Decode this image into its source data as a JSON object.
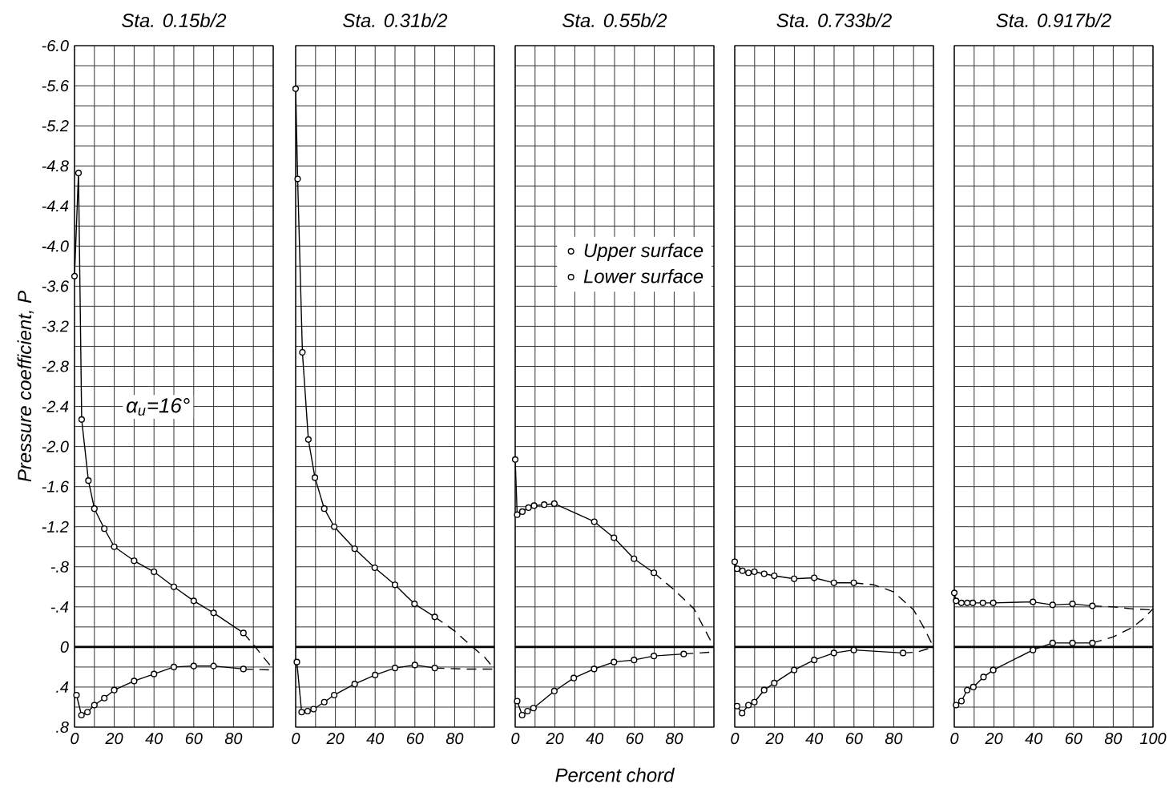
{
  "chart_data": [
    {
      "type": "line",
      "title": "Sta. 0.15b/2",
      "ylabel": "Pressure coefficient, P",
      "annotations": [
        "α$_{u}$=16°"
      ],
      "xlim": [
        0,
        100
      ],
      "ylim": [
        0.8,
        -6.0
      ],
      "grid": true,
      "marker": "circle",
      "xticks": [
        0,
        {
          "value": 10,
          "label": null
        },
        20,
        {
          "value": 30,
          "label": null
        },
        40,
        {
          "value": 50,
          "label": null
        },
        60,
        {
          "value": 70,
          "label": null
        },
        80,
        {
          "value": 90,
          "label": null
        },
        {
          "value": 100,
          "label": null
        }
      ],
      "yticks": [
        {
          "value": -6.0,
          "label": "-6.0"
        },
        {
          "value": -5.8,
          "label": null
        },
        -5.6,
        {
          "value": -5.4,
          "label": null
        },
        -5.2,
        {
          "value": -5.0,
          "label": null
        },
        -4.8,
        {
          "value": -4.6,
          "label": null
        },
        -4.4,
        {
          "value": -4.2,
          "label": null
        },
        {
          "value": -4.0,
          "label": "-4.0"
        },
        {
          "value": -3.8,
          "label": null
        },
        -3.6,
        {
          "value": -3.4,
          "label": null
        },
        -3.2,
        {
          "value": -3.0,
          "label": null
        },
        -2.8,
        {
          "value": -2.6,
          "label": null
        },
        -2.4,
        {
          "value": -2.2,
          "label": null
        },
        {
          "value": -2.0,
          "label": "-2.0"
        },
        {
          "value": -1.8,
          "label": null
        },
        -1.6,
        {
          "value": -1.4,
          "label": null
        },
        -1.2,
        {
          "value": -1.0,
          "label": null
        },
        {
          "value": -0.8,
          "label": "-.8"
        },
        {
          "value": -0.6,
          "label": null
        },
        {
          "value": -0.4,
          "label": "-.4"
        },
        {
          "value": -0.2,
          "label": null
        },
        0,
        {
          "value": 0.2,
          "label": null
        },
        {
          "value": 0.4,
          "label": ".4"
        },
        {
          "value": 0.6,
          "label": null
        },
        {
          "value": 0.8,
          "label": ".8"
        }
      ],
      "ref_lines": [
        {
          "axis": "y",
          "value": 0
        }
      ],
      "series": [
        {
          "color": "#000000",
          "x": [
            0,
            2,
            3.6,
            7,
            10,
            15,
            20,
            30,
            40,
            50,
            60,
            70,
            85
          ],
          "values": [
            -3.7,
            -4.73,
            -2.27,
            -1.66,
            -1.38,
            -1.18,
            -1.0,
            -0.86,
            -0.75,
            -0.6,
            -0.46,
            -0.34,
            -0.14
          ]
        },
        {
          "color": "#000000",
          "marker": "none",
          "line_style": "dashed",
          "x": [
            85,
            91,
            95,
            100
          ],
          "values": [
            -0.14,
            0,
            0.1,
            0.22
          ]
        },
        {
          "color": "#000000",
          "x": [
            1,
            3.5,
            6.5,
            10,
            15,
            20,
            30,
            40,
            50,
            60,
            70,
            85
          ],
          "values": [
            0.48,
            0.68,
            0.65,
            0.58,
            0.51,
            0.43,
            0.34,
            0.27,
            0.2,
            0.19,
            0.19,
            0.22
          ]
        },
        {
          "color": "#000000",
          "marker": "none",
          "line_style": "dashed",
          "x": [
            85,
            100
          ],
          "values": [
            0.22,
            0.23
          ]
        }
      ]
    },
    {
      "type": "line",
      "title": "Sta. 0.31b/2",
      "xlim": [
        0,
        100
      ],
      "ylim": [
        0.8,
        -6.0
      ],
      "grid": true,
      "marker": "circle",
      "tick_labels": "x",
      "xticks": [
        0,
        {
          "value": 10,
          "label": null
        },
        20,
        {
          "value": 30,
          "label": null
        },
        40,
        {
          "value": 50,
          "label": null
        },
        60,
        {
          "value": 70,
          "label": null
        },
        80,
        {
          "value": 90,
          "label": null
        },
        {
          "value": 100,
          "label": null
        }
      ],
      "yticks": [
        {
          "value": -6.0,
          "label": null
        },
        {
          "value": -5.8,
          "label": null
        },
        {
          "value": -5.6,
          "label": null
        },
        {
          "value": -5.4,
          "label": null
        },
        {
          "value": -5.2,
          "label": null
        },
        {
          "value": -5.0,
          "label": null
        },
        {
          "value": -4.8,
          "label": null
        },
        {
          "value": -4.6,
          "label": null
        },
        {
          "value": -4.4,
          "label": null
        },
        {
          "value": -4.2,
          "label": null
        },
        {
          "value": -4.0,
          "label": null
        },
        {
          "value": -3.8,
          "label": null
        },
        {
          "value": -3.6,
          "label": null
        },
        {
          "value": -3.4,
          "label": null
        },
        {
          "value": -3.2,
          "label": null
        },
        {
          "value": -3.0,
          "label": null
        },
        {
          "value": -2.8,
          "label": null
        },
        {
          "value": -2.6,
          "label": null
        },
        {
          "value": -2.4,
          "label": null
        },
        {
          "value": -2.2,
          "label": null
        },
        {
          "value": -2.0,
          "label": null
        },
        {
          "value": -1.8,
          "label": null
        },
        {
          "value": -1.6,
          "label": null
        },
        {
          "value": -1.4,
          "label": null
        },
        {
          "value": -1.2,
          "label": null
        },
        {
          "value": -1.0,
          "label": null
        },
        {
          "value": -0.8,
          "label": null
        },
        {
          "value": -0.6,
          "label": null
        },
        {
          "value": -0.4,
          "label": null
        },
        {
          "value": -0.2,
          "label": null
        },
        {
          "value": 0,
          "label": null
        },
        {
          "value": 0.2,
          "label": null
        },
        {
          "value": 0.4,
          "label": null
        },
        {
          "value": 0.6,
          "label": null
        },
        {
          "value": 0.8,
          "label": null
        }
      ],
      "ref_lines": [
        {
          "axis": "y",
          "value": 0
        }
      ],
      "series": [
        {
          "color": "#000000",
          "x": [
            0,
            1,
            3.4,
            6.4,
            9.7,
            14.4,
            19.4,
            29.7,
            39.8,
            50,
            59.8,
            70
          ],
          "values": [
            -5.57,
            -4.67,
            -2.94,
            -2.07,
            -1.69,
            -1.38,
            -1.2,
            -0.98,
            -0.79,
            -0.62,
            -0.43,
            -0.3
          ]
        },
        {
          "color": "#000000",
          "marker": "none",
          "line_style": "dashed",
          "x": [
            70,
            80,
            89,
            95,
            100
          ],
          "values": [
            -0.3,
            -0.16,
            0,
            0.1,
            0.22
          ]
        },
        {
          "color": "#000000",
          "x": [
            0.6,
            3,
            6,
            9,
            14.4,
            19.4,
            29.7,
            40,
            50,
            60,
            70
          ],
          "values": [
            0.15,
            0.65,
            0.64,
            0.62,
            0.55,
            0.48,
            0.37,
            0.28,
            0.21,
            0.18,
            0.21
          ]
        },
        {
          "color": "#000000",
          "marker": "none",
          "line_style": "dashed",
          "x": [
            70,
            85,
            100
          ],
          "values": [
            0.21,
            0.22,
            0.22
          ]
        }
      ]
    },
    {
      "type": "line",
      "title": "Sta. 0.55b/2",
      "xlabel": "Percent chord",
      "xlim": [
        0,
        100
      ],
      "ylim": [
        0.8,
        -6.0
      ],
      "grid": true,
      "marker": "circle",
      "tick_labels": "x",
      "legend": "top right",
      "xticks": [
        0,
        {
          "value": 10,
          "label": null
        },
        20,
        {
          "value": 30,
          "label": null
        },
        40,
        {
          "value": 50,
          "label": null
        },
        60,
        {
          "value": 70,
          "label": null
        },
        80,
        {
          "value": 90,
          "label": null
        },
        {
          "value": 100,
          "label": null
        }
      ],
      "yticks": [
        {
          "value": -6.0,
          "label": null
        },
        {
          "value": -5.8,
          "label": null
        },
        {
          "value": -5.6,
          "label": null
        },
        {
          "value": -5.4,
          "label": null
        },
        {
          "value": -5.2,
          "label": null
        },
        {
          "value": -5.0,
          "label": null
        },
        {
          "value": -4.8,
          "label": null
        },
        {
          "value": -4.6,
          "label": null
        },
        {
          "value": -4.4,
          "label": null
        },
        {
          "value": -4.2,
          "label": null
        },
        {
          "value": -4.0,
          "label": null
        },
        {
          "value": -3.8,
          "label": null
        },
        {
          "value": -3.6,
          "label": null
        },
        {
          "value": -3.4,
          "label": null
        },
        {
          "value": -3.2,
          "label": null
        },
        {
          "value": -3.0,
          "label": null
        },
        {
          "value": -2.8,
          "label": null
        },
        {
          "value": -2.6,
          "label": null
        },
        {
          "value": -2.4,
          "label": null
        },
        {
          "value": -2.2,
          "label": null
        },
        {
          "value": -2.0,
          "label": null
        },
        {
          "value": -1.8,
          "label": null
        },
        {
          "value": -1.6,
          "label": null
        },
        {
          "value": -1.4,
          "label": null
        },
        {
          "value": -1.2,
          "label": null
        },
        {
          "value": -1.0,
          "label": null
        },
        {
          "value": -0.8,
          "label": null
        },
        {
          "value": -0.6,
          "label": null
        },
        {
          "value": -0.4,
          "label": null
        },
        {
          "value": -0.2,
          "label": null
        },
        {
          "value": 0,
          "label": null
        },
        {
          "value": 0.2,
          "label": null
        },
        {
          "value": 0.4,
          "label": null
        },
        {
          "value": 0.6,
          "label": null
        },
        {
          "value": 0.8,
          "label": null
        }
      ],
      "ref_lines": [
        {
          "axis": "y",
          "value": 0
        }
      ],
      "series": [
        {
          "name": "Upper surface",
          "color": "#000000",
          "x": [
            0,
            1,
            3.6,
            6.7,
            9.5,
            14.6,
            19.7,
            39.8,
            49.7,
            59.8,
            69.8
          ],
          "values": [
            -1.87,
            -1.32,
            -1.35,
            -1.39,
            -1.41,
            -1.42,
            -1.43,
            -1.25,
            -1.09,
            -0.88,
            -0.74
          ]
        },
        {
          "color": "#000000",
          "marker": "none",
          "line_style": "dashed",
          "x": [
            69.8,
            80,
            90,
            95,
            100
          ],
          "values": [
            -0.74,
            -0.57,
            -0.38,
            -0.19,
            0
          ]
        },
        {
          "name": "Lower surface",
          "color": "#000000",
          "x": [
            1,
            3.5,
            6.2,
            9.2,
            19.7,
            29.5,
            39.7,
            49.7,
            59.8,
            69.8,
            84.8
          ],
          "values": [
            0.54,
            0.68,
            0.64,
            0.61,
            0.44,
            0.31,
            0.22,
            0.15,
            0.13,
            0.09,
            0.07
          ]
        },
        {
          "color": "#000000",
          "marker": "none",
          "line_style": "dashed",
          "x": [
            84.8,
            100
          ],
          "values": [
            0.07,
            0.05
          ]
        }
      ]
    },
    {
      "type": "line",
      "title": "Sta. 0.733b/2",
      "xlim": [
        0,
        100
      ],
      "ylim": [
        0.8,
        -6.0
      ],
      "grid": true,
      "marker": "circle",
      "tick_labels": "x",
      "xticks": [
        0,
        {
          "value": 10,
          "label": null
        },
        20,
        {
          "value": 30,
          "label": null
        },
        40,
        {
          "value": 50,
          "label": null
        },
        60,
        {
          "value": 70,
          "label": null
        },
        80,
        {
          "value": 90,
          "label": null
        },
        {
          "value": 100,
          "label": null
        }
      ],
      "yticks": [
        {
          "value": -6.0,
          "label": null
        },
        {
          "value": -5.8,
          "label": null
        },
        {
          "value": -5.6,
          "label": null
        },
        {
          "value": -5.4,
          "label": null
        },
        {
          "value": -5.2,
          "label": null
        },
        {
          "value": -5.0,
          "label": null
        },
        {
          "value": -4.8,
          "label": null
        },
        {
          "value": -4.6,
          "label": null
        },
        {
          "value": -4.4,
          "label": null
        },
        {
          "value": -4.2,
          "label": null
        },
        {
          "value": -4.0,
          "label": null
        },
        {
          "value": -3.8,
          "label": null
        },
        {
          "value": -3.6,
          "label": null
        },
        {
          "value": -3.4,
          "label": null
        },
        {
          "value": -3.2,
          "label": null
        },
        {
          "value": -3.0,
          "label": null
        },
        {
          "value": -2.8,
          "label": null
        },
        {
          "value": -2.6,
          "label": null
        },
        {
          "value": -2.4,
          "label": null
        },
        {
          "value": -2.2,
          "label": null
        },
        {
          "value": -2.0,
          "label": null
        },
        {
          "value": -1.8,
          "label": null
        },
        {
          "value": -1.6,
          "label": null
        },
        {
          "value": -1.4,
          "label": null
        },
        {
          "value": -1.2,
          "label": null
        },
        {
          "value": -1.0,
          "label": null
        },
        {
          "value": -0.8,
          "label": null
        },
        {
          "value": -0.6,
          "label": null
        },
        {
          "value": -0.4,
          "label": null
        },
        {
          "value": -0.2,
          "label": null
        },
        {
          "value": 0,
          "label": null
        },
        {
          "value": 0.2,
          "label": null
        },
        {
          "value": 0.4,
          "label": null
        },
        {
          "value": 0.6,
          "label": null
        },
        {
          "value": 0.8,
          "label": null
        }
      ],
      "ref_lines": [
        {
          "axis": "y",
          "value": 0
        }
      ],
      "series": [
        {
          "color": "#000000",
          "x": [
            0,
            1.2,
            3.9,
            6.9,
            9.9,
            14.8,
            19.9,
            29.9,
            40,
            49.9,
            59.9
          ],
          "values": [
            -0.85,
            -0.78,
            -0.76,
            -0.74,
            -0.75,
            -0.73,
            -0.71,
            -0.68,
            -0.69,
            -0.64,
            -0.64
          ]
        },
        {
          "color": "#000000",
          "marker": "none",
          "line_style": "dashed",
          "x": [
            59.9,
            70,
            80,
            90,
            95,
            100
          ],
          "values": [
            -0.64,
            -0.62,
            -0.55,
            -0.37,
            -0.2,
            0
          ]
        },
        {
          "color": "#000000",
          "x": [
            1.2,
            3.7,
            6.9,
            9.9,
            14.8,
            19.9,
            29.9,
            40,
            49.9,
            59.9,
            84.7
          ],
          "values": [
            0.59,
            0.66,
            0.58,
            0.55,
            0.43,
            0.36,
            0.23,
            0.13,
            0.06,
            0.03,
            0.06
          ]
        },
        {
          "color": "#000000",
          "marker": "none",
          "line_style": "dashed",
          "x": [
            84.7,
            92,
            100
          ],
          "values": [
            0.06,
            0.05,
            0
          ]
        }
      ]
    },
    {
      "type": "line",
      "title": "Sta. 0.917b/2",
      "xlim": [
        0,
        100
      ],
      "ylim": [
        0.8,
        -6.0
      ],
      "grid": true,
      "marker": "circle",
      "tick_labels": "x",
      "xticks": [
        0,
        {
          "value": 10,
          "label": null
        },
        20,
        {
          "value": 30,
          "label": null
        },
        40,
        {
          "value": 50,
          "label": null
        },
        60,
        {
          "value": 70,
          "label": null
        },
        80,
        {
          "value": 90,
          "label": null
        },
        100
      ],
      "yticks": [
        {
          "value": -6.0,
          "label": null
        },
        {
          "value": -5.8,
          "label": null
        },
        {
          "value": -5.6,
          "label": null
        },
        {
          "value": -5.4,
          "label": null
        },
        {
          "value": -5.2,
          "label": null
        },
        {
          "value": -5.0,
          "label": null
        },
        {
          "value": -4.8,
          "label": null
        },
        {
          "value": -4.6,
          "label": null
        },
        {
          "value": -4.4,
          "label": null
        },
        {
          "value": -4.2,
          "label": null
        },
        {
          "value": -4.0,
          "label": null
        },
        {
          "value": -3.8,
          "label": null
        },
        {
          "value": -3.6,
          "label": null
        },
        {
          "value": -3.4,
          "label": null
        },
        {
          "value": -3.2,
          "label": null
        },
        {
          "value": -3.0,
          "label": null
        },
        {
          "value": -2.8,
          "label": null
        },
        {
          "value": -2.6,
          "label": null
        },
        {
          "value": -2.4,
          "label": null
        },
        {
          "value": -2.2,
          "label": null
        },
        {
          "value": -2.0,
          "label": null
        },
        {
          "value": -1.8,
          "label": null
        },
        {
          "value": -1.6,
          "label": null
        },
        {
          "value": -1.4,
          "label": null
        },
        {
          "value": -1.2,
          "label": null
        },
        {
          "value": -1.0,
          "label": null
        },
        {
          "value": -0.8,
          "label": null
        },
        {
          "value": -0.6,
          "label": null
        },
        {
          "value": -0.4,
          "label": null
        },
        {
          "value": -0.2,
          "label": null
        },
        {
          "value": 0,
          "label": null
        },
        {
          "value": 0.2,
          "label": null
        },
        {
          "value": 0.4,
          "label": null
        },
        {
          "value": 0.6,
          "label": null
        },
        {
          "value": 0.8,
          "label": null
        }
      ],
      "ref_lines": [
        {
          "axis": "y",
          "value": 0
        }
      ],
      "series": [
        {
          "color": "#000000",
          "x": [
            0,
            0.9,
            3.6,
            6.5,
            9.3,
            14.4,
            19.6,
            39.6,
            49.5,
            59.5,
            69.5
          ],
          "values": [
            -0.54,
            -0.46,
            -0.44,
            -0.44,
            -0.44,
            -0.44,
            -0.44,
            -0.45,
            -0.42,
            -0.43,
            -0.41
          ]
        },
        {
          "color": "#000000",
          "marker": "none",
          "line_style": "dashed",
          "x": [
            69.5,
            80,
            90,
            100
          ],
          "values": [
            -0.41,
            -0.4,
            -0.38,
            -0.37
          ]
        },
        {
          "color": "#000000",
          "x": [
            0.9,
            3.6,
            6.5,
            9.6,
            14.7,
            19.6,
            39.6,
            49.5,
            59.5,
            69.5
          ],
          "values": [
            0.58,
            0.54,
            0.43,
            0.4,
            0.3,
            0.23,
            0.03,
            -0.04,
            -0.04,
            -0.04
          ]
        },
        {
          "color": "#000000",
          "marker": "none",
          "line_style": "dashed",
          "x": [
            69.5,
            80,
            90,
            95,
            100
          ],
          "values": [
            -0.04,
            -0.1,
            -0.2,
            -0.28,
            -0.38
          ]
        }
      ]
    }
  ]
}
